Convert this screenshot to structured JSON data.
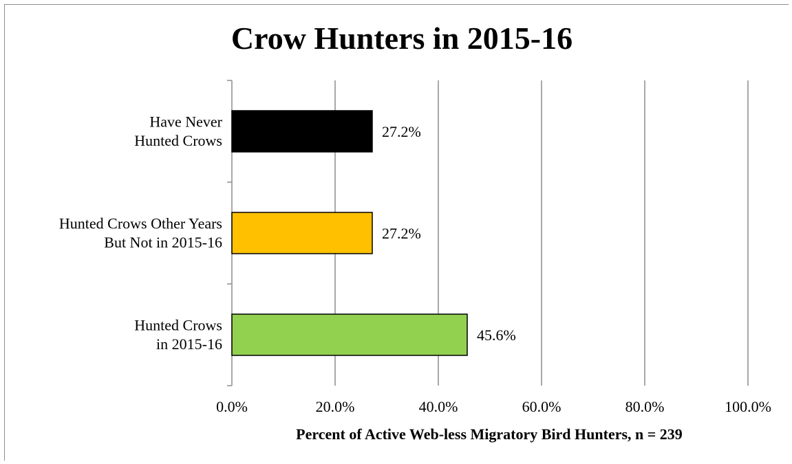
{
  "chart_data": {
    "type": "bar",
    "orientation": "horizontal",
    "title": "Crow Hunters in 2015-16",
    "xlabel": "Percent of Active Web-less Migratory Bird Hunters, n = 239",
    "ylabel": "",
    "xlim": [
      0,
      100
    ],
    "x_ticks": [
      "0.0%",
      "20.0%",
      "40.0%",
      "60.0%",
      "80.0%",
      "100.0%"
    ],
    "grid": "vertical",
    "legend": "none",
    "categories": [
      {
        "lines": [
          "Have Never",
          "Hunted Crows"
        ],
        "value": 27.2,
        "label": "27.2%",
        "color": "#000000"
      },
      {
        "lines": [
          "Hunted Crows Other Years",
          "But Not in 2015-16"
        ],
        "value": 27.2,
        "label": "27.2%",
        "color": "#ffc000"
      },
      {
        "lines": [
          "Hunted Crows",
          "in 2015-16"
        ],
        "value": 45.6,
        "label": "45.6%",
        "color": "#92d050"
      }
    ]
  }
}
